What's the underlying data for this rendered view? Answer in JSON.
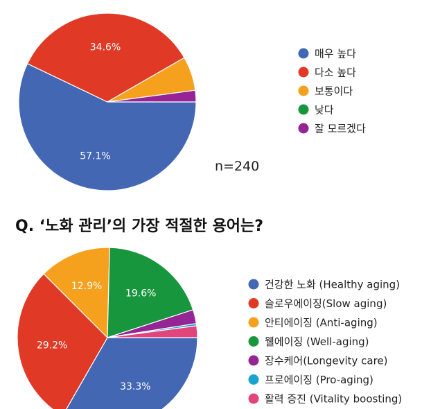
{
  "colors": {
    "blue": "#4467b4",
    "red": "#e03a26",
    "orange": "#f5a11d",
    "green": "#17963d",
    "purple": "#952494",
    "cyan": "#1ba3d0",
    "pink": "#e2447c"
  },
  "annotations": {
    "n_label": "n=240",
    "question": "Q. ‘노화 관리’의 가장 적절한 용어는?"
  },
  "chart_data": [
    {
      "type": "pie",
      "title": "",
      "labels": [
        "매우 높다",
        "다소 높다",
        "보통이다",
        "낮다",
        "잘 모르겠다"
      ],
      "values": [
        57.1,
        34.6,
        6.2,
        0.0,
        2.1
      ],
      "slice_labels": [
        "57.1%",
        "34.6%",
        "",
        "",
        ""
      ],
      "colors": [
        "#4467b4",
        "#e03a26",
        "#f5a11d",
        "#17963d",
        "#952494"
      ],
      "legend": "right"
    },
    {
      "type": "pie",
      "title": "Q. ‘노화 관리’의 가장 적절한 용어는?",
      "labels": [
        "건강한 노화 (Healthy aging)",
        "슬로우에이징(Slow aging)",
        "안티에이징 (Anti-aging)",
        "웰에이징 (Well-aging)",
        "장수케어(Longevity care)",
        "프로에이징 (Pro-aging)",
        "활력 증진 (Vitality boosting)"
      ],
      "values": [
        33.3,
        29.2,
        12.9,
        19.6,
        2.5,
        0.4,
        2.1
      ],
      "slice_labels": [
        "33.3%",
        "29.2%",
        "12.9%",
        "19.6%",
        "",
        "",
        ""
      ],
      "colors": [
        "#4467b4",
        "#e03a26",
        "#f5a11d",
        "#17963d",
        "#952494",
        "#1ba3d0",
        "#e2447c"
      ],
      "legend": "right"
    }
  ]
}
